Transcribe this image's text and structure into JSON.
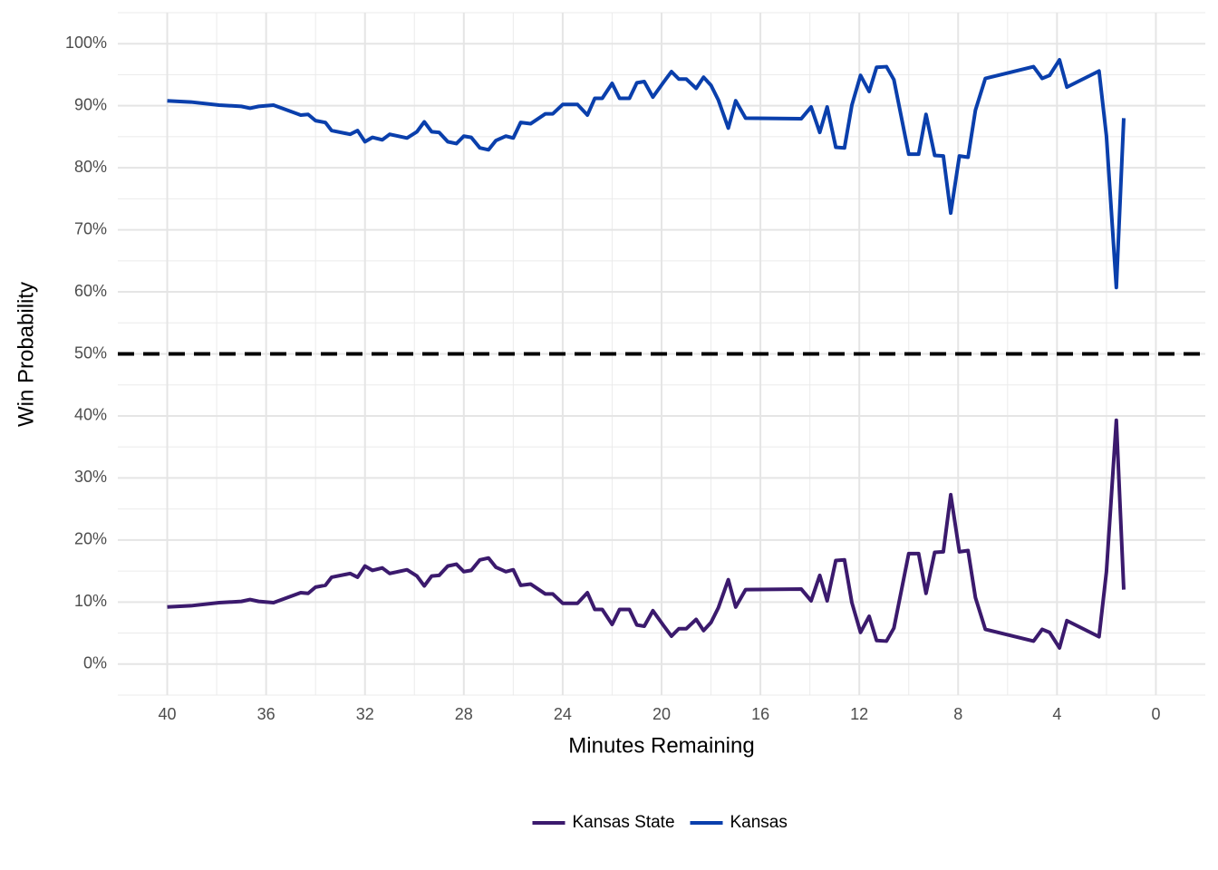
{
  "chart_data": {
    "type": "line",
    "x_label": "Minutes Remaining",
    "y_label": "Win Probability",
    "x": [
      40,
      39.04,
      37.9,
      37.0,
      36.65,
      36.3,
      35.7,
      34.6,
      34.3,
      34.0,
      33.6,
      33.35,
      32.6,
      32.3,
      32.0,
      31.7,
      31.3,
      31.0,
      30.3,
      29.9,
      29.6,
      29.3,
      29.0,
      28.65,
      28.3,
      28.0,
      27.7,
      27.35,
      27.0,
      26.7,
      26.3,
      26.0,
      25.7,
      25.3,
      24.7,
      24.4,
      24.0,
      23.4,
      23.0,
      22.7,
      22.4,
      22.0,
      21.7,
      21.3,
      21.0,
      20.7,
      20.35,
      19.9,
      19.6,
      19.3,
      19.0,
      18.6,
      18.3,
      18.0,
      17.7,
      17.3,
      17.0,
      16.6,
      14.35,
      13.95,
      13.6,
      13.3,
      12.95,
      12.6,
      12.3,
      11.95,
      11.6,
      11.3,
      10.9,
      10.6,
      10.0,
      9.6,
      9.3,
      8.95,
      8.6,
      8.3,
      7.95,
      7.6,
      7.3,
      6.9,
      4.95,
      4.6,
      4.3,
      3.9,
      3.6,
      2.3,
      2.0,
      1.6,
      1.3
    ],
    "series": [
      {
        "name": "Kansas State",
        "color": "#3b1a6d",
        "values": [
          9.2,
          9.4,
          9.9,
          10.1,
          10.4,
          10.1,
          9.9,
          11.5,
          11.4,
          12.4,
          12.7,
          14.0,
          14.6,
          14.0,
          15.8,
          15.1,
          15.5,
          14.6,
          15.2,
          14.2,
          12.6,
          14.2,
          14.3,
          15.8,
          16.1,
          14.9,
          15.1,
          16.8,
          17.1,
          15.6,
          14.9,
          15.2,
          12.7,
          12.9,
          11.3,
          11.3,
          9.8,
          9.8,
          11.5,
          8.8,
          8.8,
          6.4,
          8.8,
          8.8,
          6.3,
          6.1,
          8.6,
          6.1,
          4.5,
          5.7,
          5.7,
          7.2,
          5.4,
          6.7,
          9.1,
          13.6,
          9.2,
          12.0,
          12.1,
          10.2,
          14.3,
          10.2,
          16.7,
          16.8,
          9.9,
          5.1,
          7.7,
          3.8,
          3.7,
          5.8,
          17.8,
          17.8,
          11.4,
          18.0,
          18.1,
          27.3,
          18.1,
          18.3,
          10.7,
          5.6,
          3.7,
          5.6,
          5.1,
          2.6,
          7.0,
          4.4,
          14.9,
          39.3,
          12.0
        ]
      },
      {
        "name": "Kansas",
        "color": "#0a3fac",
        "values": [
          90.8,
          90.6,
          90.1,
          89.9,
          89.6,
          89.9,
          90.1,
          88.5,
          88.6,
          87.6,
          87.3,
          86.0,
          85.4,
          86.0,
          84.2,
          84.9,
          84.5,
          85.4,
          84.8,
          85.8,
          87.4,
          85.8,
          85.7,
          84.2,
          83.9,
          85.1,
          84.9,
          83.2,
          82.9,
          84.4,
          85.1,
          84.8,
          87.3,
          87.1,
          88.7,
          88.7,
          90.2,
          90.2,
          88.5,
          91.2,
          91.2,
          93.6,
          91.2,
          91.2,
          93.7,
          93.9,
          91.4,
          93.9,
          95.5,
          94.3,
          94.3,
          92.8,
          94.6,
          93.3,
          90.9,
          86.4,
          90.8,
          88.0,
          87.9,
          89.8,
          85.7,
          89.8,
          83.3,
          83.2,
          90.1,
          94.9,
          92.3,
          96.2,
          96.3,
          94.2,
          82.2,
          82.2,
          88.6,
          82.0,
          81.9,
          72.7,
          81.9,
          81.7,
          89.3,
          94.4,
          96.3,
          94.4,
          94.9,
          97.4,
          93.0,
          95.6,
          85.1,
          60.7,
          88.0
        ]
      }
    ],
    "xlim": [
      42,
      -2
    ],
    "xticks": [
      40,
      36,
      32,
      28,
      24,
      20,
      16,
      12,
      8,
      4,
      0
    ],
    "ylim": [
      -5,
      105
    ],
    "yticks": [
      {
        "value": 0,
        "label": "0%"
      },
      {
        "value": 10,
        "label": "10%"
      },
      {
        "value": 20,
        "label": "20%"
      },
      {
        "value": 30,
        "label": "30%"
      },
      {
        "value": 40,
        "label": "40%"
      },
      {
        "value": 50,
        "label": "50%"
      },
      {
        "value": 60,
        "label": "60%"
      },
      {
        "value": 70,
        "label": "70%"
      },
      {
        "value": 80,
        "label": "80%"
      },
      {
        "value": 90,
        "label": "90%"
      },
      {
        "value": 100,
        "label": "100%"
      }
    ],
    "hline": 50,
    "grid": true,
    "legend": "bottom"
  }
}
